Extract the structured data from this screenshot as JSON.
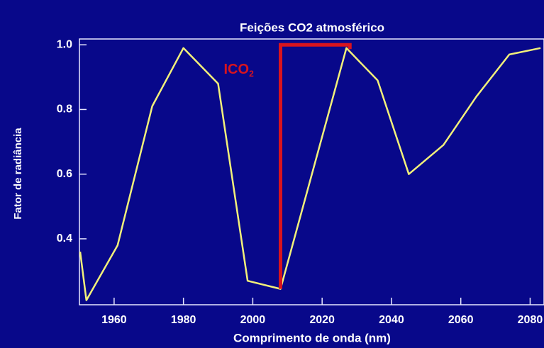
{
  "chart_data": {
    "type": "line",
    "title": "Feições CO2 atmosférico",
    "x_label": "Comprimento de onda (nm)",
    "y_label": "Fator de radiância",
    "x": [
      1950.2,
      1952,
      1961,
      1971,
      1980,
      1990,
      1998.5,
      2008,
      2027,
      2036,
      2045,
      2055,
      2064.5,
      2074,
      2083
    ],
    "series": [
      {
        "color": "#f2f07a",
        "values": [
          0.36,
          0.21,
          0.38,
          0.81,
          0.99,
          0.88,
          0.27,
          0.245,
          0.99,
          0.89,
          0.6,
          0.69,
          0.84,
          0.97,
          0.99
        ]
      }
    ],
    "xlim": [
      1950,
      2084
    ],
    "ylim": [
      0.196,
      1.018
    ],
    "xticks": [
      1960,
      1980,
      2000,
      2020,
      2040,
      2060,
      2080
    ],
    "yticks": [
      0.4,
      0.6,
      0.8,
      {
        "value": 1.0,
        "label": "1.0"
      }
    ],
    "annotation": {
      "text": "ICO",
      "subscript": "2",
      "color": "#d8141e",
      "x": [
        2008,
        2028
      ],
      "y": [
        0.245,
        1.0
      ]
    }
  }
}
